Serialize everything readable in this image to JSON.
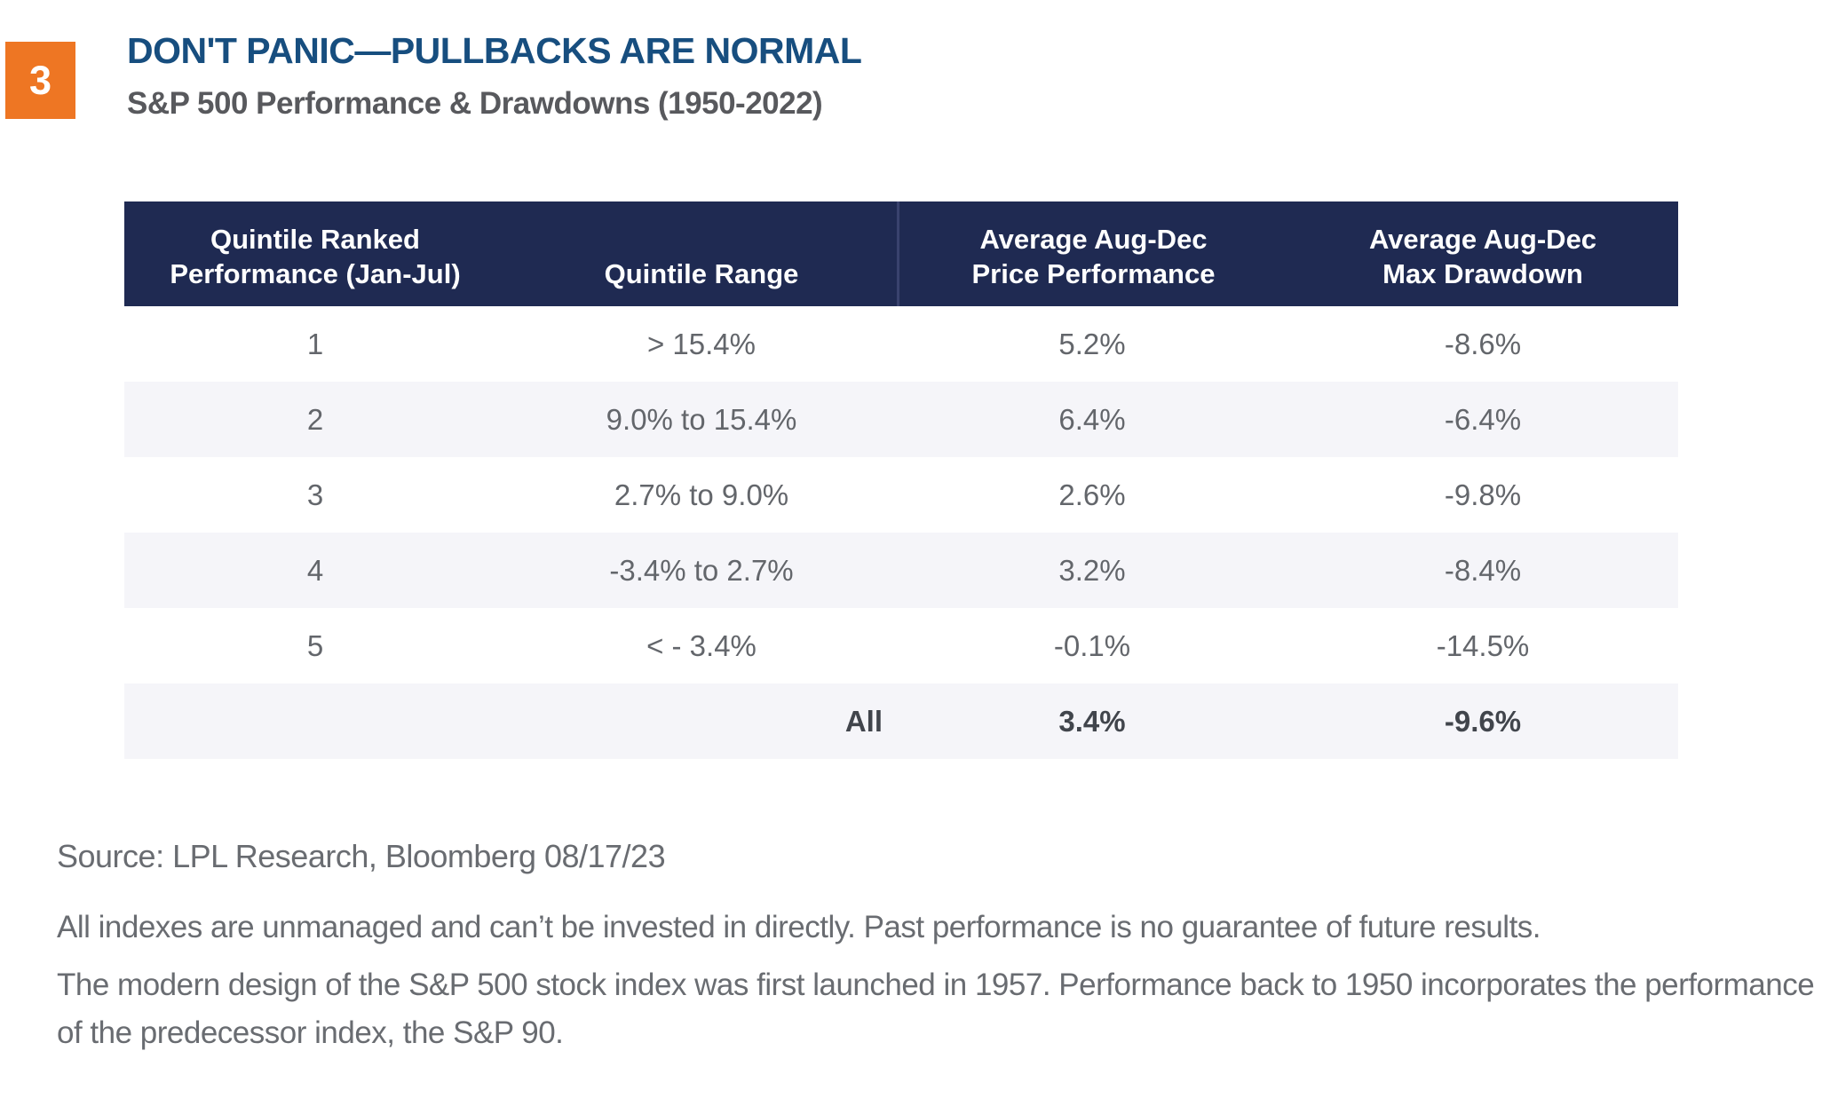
{
  "page": {
    "badge": "3",
    "title": "DON'T PANIC—PULLBACKS ARE NORMAL",
    "subtitle": "S&P 500 Performance & Drawdowns (1950-2022)"
  },
  "colors": {
    "badge_orange": "#EE7623",
    "table_header_navy": "#1F2A52",
    "title_blue": "#174E7F",
    "row_alt_background": "#F5F5F9",
    "body_text_gray": "#63666B"
  },
  "chart_data": {
    "type": "table",
    "title": "DON'T PANIC—PULLBACKS ARE NORMAL",
    "subtitle": "S&P 500 Performance & Drawdowns (1950-2022)",
    "columns": [
      {
        "line1": "Quintile Ranked",
        "line2": "Performance (Jan-Jul)"
      },
      {
        "line1": "",
        "line2": "Quintile Range"
      },
      {
        "line1": "Average Aug-Dec",
        "line2": "Price Performance"
      },
      {
        "line1": "Average Aug-Dec",
        "line2": "Max Drawdown"
      }
    ],
    "rows": [
      {
        "quintile": "1",
        "range": "> 15.4%",
        "perf": "5.2%",
        "dd": "-8.6%"
      },
      {
        "quintile": "2",
        "range": "9.0% to 15.4%",
        "perf": "6.4%",
        "dd": "-6.4%"
      },
      {
        "quintile": "3",
        "range": "2.7% to 9.0%",
        "perf": "2.6%",
        "dd": "-9.8%"
      },
      {
        "quintile": "4",
        "range": "-3.4% to 2.7%",
        "perf": "3.2%",
        "dd": "-8.4%"
      },
      {
        "quintile": "5",
        "range": "< - 3.4%",
        "perf": "-0.1%",
        "dd": "-14.5%"
      },
      {
        "quintile": "",
        "range": "All",
        "perf": "3.4%",
        "dd": "-9.6%"
      }
    ],
    "numeric": {
      "quintiles": [
        1,
        2,
        3,
        4,
        5
      ],
      "avg_aug_dec_price_performance_pct": [
        5.2,
        6.4,
        2.6,
        3.2,
        -0.1
      ],
      "avg_aug_dec_max_drawdown_pct": [
        -8.6,
        -6.4,
        -9.8,
        -8.4,
        -14.5
      ],
      "all_avg_price_performance_pct": 3.4,
      "all_avg_max_drawdown_pct": -9.6
    }
  },
  "footer": {
    "source": "Source: LPL Research, Bloomberg 08/17/23",
    "disclaimer1": "All indexes are unmanaged and can’t be invested in directly. Past performance is no guarantee of future results.",
    "disclaimer2": "The modern design of the S&P 500 stock index was first launched in 1957. Performance back to 1950 incorporates the performance of the predecessor index, the S&P 90."
  }
}
